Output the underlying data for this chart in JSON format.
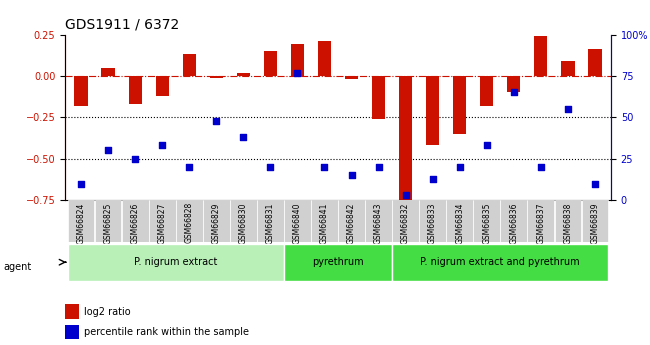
{
  "title": "GDS1911 / 6372",
  "samples": [
    "GSM66824",
    "GSM66825",
    "GSM66826",
    "GSM66827",
    "GSM66828",
    "GSM66829",
    "GSM66830",
    "GSM66831",
    "GSM66840",
    "GSM66841",
    "GSM66842",
    "GSM66843",
    "GSM66832",
    "GSM66833",
    "GSM66834",
    "GSM66835",
    "GSM66836",
    "GSM66837",
    "GSM66838",
    "GSM66839"
  ],
  "log2_ratio": [
    -0.18,
    0.05,
    -0.17,
    -0.12,
    0.13,
    -0.01,
    0.02,
    0.15,
    0.19,
    0.21,
    -0.02,
    -0.26,
    -0.75,
    -0.42,
    -0.35,
    -0.18,
    -0.1,
    0.24,
    0.09,
    0.16
  ],
  "pct_rank": [
    10,
    30,
    25,
    33,
    20,
    48,
    38,
    20,
    77,
    20,
    15,
    20,
    3,
    13,
    20,
    33,
    65,
    20,
    55,
    10
  ],
  "groups": [
    {
      "label": "P. nigrum extract",
      "start": 0,
      "end": 7,
      "color": "#90ee90"
    },
    {
      "label": "pyrethrum",
      "start": 8,
      "end": 11,
      "color": "#00cc00"
    },
    {
      "label": "P. nigrum extract and pyrethrum",
      "start": 12,
      "end": 19,
      "color": "#00cc00"
    }
  ],
  "bar_color": "#cc1100",
  "dot_color": "#0000cc",
  "ylim_left": [
    -0.75,
    0.25
  ],
  "ylim_right": [
    0,
    100
  ],
  "yticks_left": [
    -0.75,
    -0.5,
    -0.25,
    0.0,
    0.25
  ],
  "yticks_right": [
    0,
    25,
    50,
    75,
    100
  ],
  "hline_y": [
    0.0,
    -0.25,
    -0.5
  ],
  "hline_styles": [
    "dash-dot",
    "dot",
    "dot"
  ],
  "background_color": "#ffffff",
  "plot_bg": "#ffffff"
}
